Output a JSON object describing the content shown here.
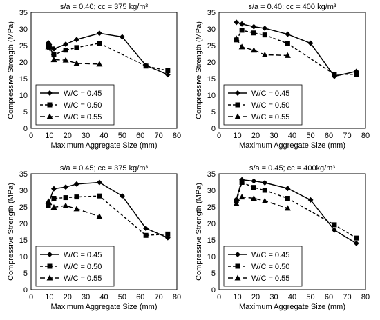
{
  "chart_data": [
    {
      "type": "line",
      "title": "s/a = 0.40; cc = 375 kg/m³",
      "xlabel": "Maximum Aggregate Size (mm)",
      "ylabel": "Compressive Strength (MPa)",
      "xlim": [
        0,
        80
      ],
      "ylim": [
        0,
        35
      ],
      "xticks": [
        "0",
        "10",
        "20",
        "30",
        "40",
        "50",
        "60",
        "70",
        "80"
      ],
      "yticks": [
        "0",
        "5",
        "10",
        "15",
        "20",
        "25",
        "30",
        "35"
      ],
      "legend_position": "bottom-left",
      "series": [
        {
          "name": "W/C = 0.45",
          "x": [
            9.5,
            10,
            12.5,
            19,
            25,
            37.5,
            50,
            63,
            75
          ],
          "y": [
            25.8,
            25.3,
            24.0,
            25.4,
            26.8,
            28.7,
            27.6,
            19.0,
            16.2
          ]
        },
        {
          "name": "W/C = 0.50",
          "x": [
            9.5,
            10,
            12.5,
            19,
            25,
            37.5,
            63,
            75
          ],
          "y": [
            25.0,
            24.5,
            22.2,
            23.6,
            24.4,
            25.7,
            18.8,
            17.4
          ]
        },
        {
          "name": "W/C = 0.55",
          "x": [
            9.5,
            12.5,
            19,
            25,
            37.5
          ],
          "y": [
            24.6,
            20.7,
            20.6,
            19.6,
            19.4
          ]
        }
      ]
    },
    {
      "type": "line",
      "title": "s/a = 0.40; cc = 400 kg/m³",
      "xlabel": "Maximum Aggregate Size (mm)",
      "ylabel": "Compressive Strength (MPa)",
      "xlim": [
        0,
        80
      ],
      "ylim": [
        0,
        35
      ],
      "xticks": [
        "0",
        "10",
        "20",
        "30",
        "40",
        "50",
        "60",
        "70",
        "80"
      ],
      "yticks": [
        "0",
        "5",
        "10",
        "15",
        "20",
        "25",
        "30",
        "35"
      ],
      "legend_position": "bottom-left",
      "series": [
        {
          "name": "W/C = 0.45",
          "x": [
            9.5,
            12.5,
            19,
            25,
            37.5,
            50,
            63,
            75
          ],
          "y": [
            32.0,
            31.5,
            30.7,
            30.2,
            28.4,
            25.7,
            15.7,
            17.2
          ]
        },
        {
          "name": "W/C = 0.50",
          "x": [
            9.5,
            12.5,
            19,
            25,
            37.5,
            63,
            75
          ],
          "y": [
            26.7,
            29.6,
            28.8,
            28.2,
            25.6,
            16.3,
            16.3
          ]
        },
        {
          "name": "W/C = 0.55",
          "x": [
            9.5,
            12.5,
            19,
            25,
            37.5
          ],
          "y": [
            27.1,
            24.6,
            23.6,
            22.2,
            22.0
          ]
        }
      ]
    },
    {
      "type": "line",
      "title": "s/a = 0.45; cc = 375 kg/m³",
      "xlabel": "Maximum Aggregate Size (mm)",
      "ylabel": "Compressive Strength (MPa)",
      "xlim": [
        0,
        80
      ],
      "ylim": [
        0,
        35
      ],
      "xticks": [
        "0",
        "10",
        "20",
        "30",
        "40",
        "50",
        "60",
        "70",
        "80"
      ],
      "yticks": [
        "0",
        "5",
        "10",
        "15",
        "20",
        "25",
        "30",
        "35"
      ],
      "legend_position": "bottom-left",
      "series": [
        {
          "name": "W/C = 0.45",
          "x": [
            9.5,
            12.5,
            19,
            25,
            37.5,
            50,
            63,
            75
          ],
          "y": [
            26.0,
            30.5,
            31.0,
            31.9,
            32.4,
            28.3,
            18.5,
            15.7
          ]
        },
        {
          "name": "W/C = 0.50",
          "x": [
            9.5,
            12.5,
            19,
            25,
            37.5,
            63,
            75
          ],
          "y": [
            25.5,
            27.6,
            27.8,
            28.0,
            28.3,
            16.4,
            16.8
          ]
        },
        {
          "name": "W/C = 0.55",
          "x": [
            9.5,
            12.5,
            19,
            25,
            37.5
          ],
          "y": [
            26.7,
            24.9,
            25.4,
            24.4,
            22.1
          ]
        }
      ]
    },
    {
      "type": "line",
      "title": "s/a = 0.45; cc = 400kg/m³",
      "xlabel": "Maximum Aggregate Size (mm)",
      "ylabel": "Compressive Strength (MPa)",
      "xlim": [
        0,
        80
      ],
      "ylim": [
        0,
        35
      ],
      "xticks": [
        "0",
        "10",
        "20",
        "30",
        "40",
        "50",
        "60",
        "70",
        "80"
      ],
      "yticks": [
        "0",
        "5",
        "10",
        "15",
        "20",
        "25",
        "30",
        "35"
      ],
      "legend_position": "bottom-left",
      "series": [
        {
          "name": "W/C = 0.45",
          "x": [
            9.5,
            12.5,
            19,
            25,
            37.5,
            50,
            63,
            75
          ],
          "y": [
            27.3,
            33.2,
            32.8,
            32.3,
            30.6,
            27.1,
            18.0,
            14.0
          ]
        },
        {
          "name": "W/C = 0.50",
          "x": [
            9.5,
            12.5,
            19,
            25,
            37.5,
            63,
            75
          ],
          "y": [
            26.8,
            32.4,
            30.9,
            30.0,
            27.6,
            19.6,
            15.6
          ]
        },
        {
          "name": "W/C = 0.55",
          "x": [
            9.5,
            12.5,
            19,
            25,
            37.5
          ],
          "y": [
            26.0,
            28.0,
            27.6,
            26.8,
            24.6
          ]
        }
      ]
    }
  ]
}
